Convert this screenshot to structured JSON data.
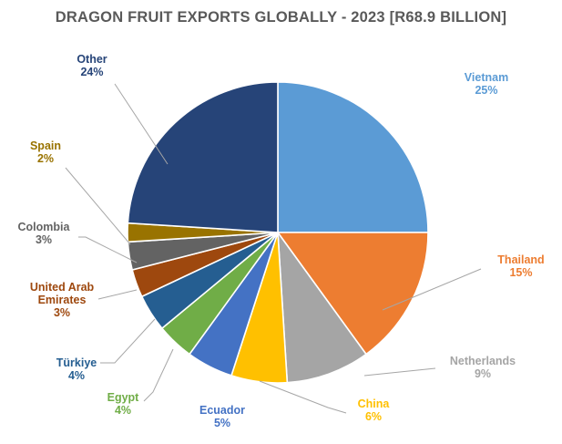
{
  "chart_data": {
    "type": "pie",
    "title": "DRAGON FRUIT EXPORTS GLOBALLY - 2023 [R68.9 BILLION]",
    "slices": [
      {
        "label": [
          "Vietnam"
        ],
        "pct": "25%",
        "value": 25,
        "color": "#5B9BD5"
      },
      {
        "label": [
          "Thailand"
        ],
        "pct": "15%",
        "value": 15,
        "color": "#ED7D31"
      },
      {
        "label": [
          "Netherlands"
        ],
        "pct": "9%",
        "value": 9,
        "color": "#A5A5A5"
      },
      {
        "label": [
          "China"
        ],
        "pct": "6%",
        "value": 6,
        "color": "#FFC000"
      },
      {
        "label": [
          "Ecuador"
        ],
        "pct": "5%",
        "value": 5,
        "color": "#4472C4"
      },
      {
        "label": [
          "Egypt"
        ],
        "pct": "4%",
        "value": 4,
        "color": "#70AD47"
      },
      {
        "label": [
          "Türkiye"
        ],
        "pct": "4%",
        "value": 4,
        "color": "#255E91"
      },
      {
        "label": [
          "United Arab",
          "Emirates"
        ],
        "pct": "3%",
        "value": 3,
        "color": "#9E480E"
      },
      {
        "label": [
          "Colombia"
        ],
        "pct": "3%",
        "value": 3,
        "color": "#636363"
      },
      {
        "label": [
          "Spain"
        ],
        "pct": "2%",
        "value": 2,
        "color": "#997300"
      },
      {
        "label": [
          "Other"
        ],
        "pct": "24%",
        "value": 24,
        "color": "#264478"
      }
    ]
  }
}
